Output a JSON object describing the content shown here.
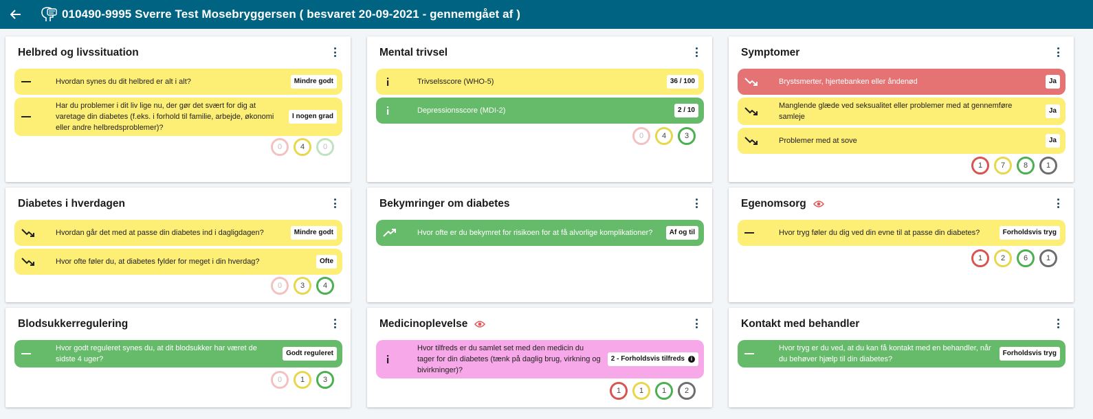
{
  "header": {
    "title": "010490-9995 Sverre Test Mosebryggersen ( besvaret 20-09-2021 - gennemgået af )"
  },
  "colors": {
    "topbar": "#006382",
    "yellow": "#fdee75",
    "green": "#66bb6a",
    "red": "#e57373",
    "pink": "#f7a8e8"
  },
  "cards": {
    "helbred": {
      "title": "Helbred og livssituation",
      "items": [
        {
          "q": "Hvordan synes du dit helbred er alt i alt?",
          "badge": "Mindre godt"
        },
        {
          "q": "Har du problemer i dit liv lige nu, der gør det svært for dig at varetage din diabetes (f.eks. i forhold til familie, arbejde, økonomi eller andre helbredsproblemer)?",
          "badge": "I nogen grad"
        }
      ],
      "counts": [
        "0",
        "4",
        "0"
      ]
    },
    "mental": {
      "title": "Mental trivsel",
      "items": [
        {
          "q": "Trivselsscore (WHO-5)",
          "badge": "36 / 100"
        },
        {
          "q": "Depressionsscore (MDI-2)",
          "badge": "2 / 10"
        }
      ],
      "counts": [
        "0",
        "4",
        "3"
      ]
    },
    "symptomer": {
      "title": "Symptomer",
      "items": [
        {
          "q": "Brystsmerter, hjertebanken eller åndenød",
          "badge": "Ja"
        },
        {
          "q": "Manglende glæde ved seksualitet eller problemer med at gennemføre samleje",
          "badge": "Ja"
        },
        {
          "q": "Problemer med at sove",
          "badge": "Ja"
        }
      ],
      "counts": [
        "1",
        "7",
        "8",
        "1"
      ]
    },
    "hverdag": {
      "title": "Diabetes i hverdagen",
      "items": [
        {
          "q": "Hvordan går det med at passe din diabetes ind i dagligdagen?",
          "badge": "Mindre godt"
        },
        {
          "q": "Hvor ofte føler du, at diabetes fylder for meget i din hverdag?",
          "badge": "Ofte"
        }
      ],
      "counts": [
        "0",
        "3",
        "4"
      ]
    },
    "bekymringer": {
      "title": "Bekymringer om diabetes",
      "items": [
        {
          "q": "Hvor ofte er du bekymret for risikoen for at få alvorlige komplikationer?",
          "badge": "Af og til"
        }
      ]
    },
    "egenomsorg": {
      "title": "Egenomsorg",
      "items": [
        {
          "q": "Hvor tryg føler du dig ved din evne til at passe din diabetes?",
          "badge": "Forholdsvis tryg"
        }
      ],
      "counts": [
        "1",
        "2",
        "6",
        "1"
      ]
    },
    "blodsukker": {
      "title": "Blodsukkerregulering",
      "items": [
        {
          "q": "Hvor godt reguleret synes du, at dit blodsukker har været de sidste 4 uger?",
          "badge": "Godt reguleret"
        }
      ],
      "counts": [
        "0",
        "1",
        "3"
      ]
    },
    "medicin": {
      "title": "Medicinoplevelse",
      "items": [
        {
          "q": "Hvor tilfreds er du samlet set med den medicin du tager for din diabetes (tænk på daglig brug, virkning og bivirkninger)?",
          "badge": "2 - Forholdsvis tilfreds"
        }
      ],
      "counts": [
        "1",
        "1",
        "1",
        "2"
      ]
    },
    "kontakt": {
      "title": "Kontakt med behandler",
      "items": [
        {
          "q": "Hvor tryg er du ved, at du kan få kontakt med en behandler, når du behøver hjælp til din diabetes?",
          "badge": "Forholdsvis tryg"
        }
      ]
    }
  }
}
